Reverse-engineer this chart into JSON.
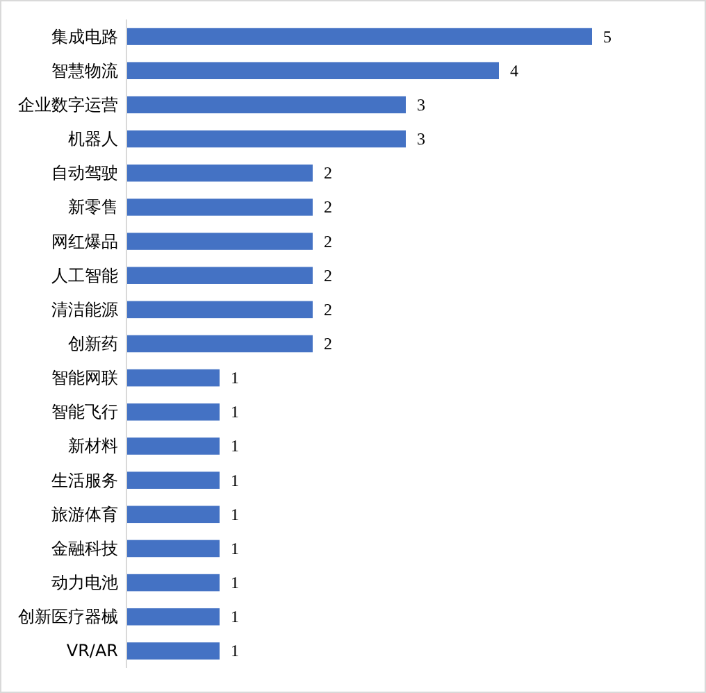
{
  "chart_data": {
    "type": "bar",
    "orientation": "horizontal",
    "categories": [
      "集成电路",
      "智慧物流",
      "企业数字运营",
      "机器人",
      "自动驾驶",
      "新零售",
      "网红爆品",
      "人工智能",
      "清洁能源",
      "创新药",
      "智能网联",
      "智能飞行",
      "新材料",
      "生活服务",
      "旅游体育",
      "金融科技",
      "动力电池",
      "创新医疗器械",
      "VR/AR"
    ],
    "values": [
      5,
      4,
      3,
      3,
      2,
      2,
      2,
      2,
      2,
      2,
      1,
      1,
      1,
      1,
      1,
      1,
      1,
      1,
      1
    ],
    "color": "#4472c4",
    "data_labels": true
  }
}
